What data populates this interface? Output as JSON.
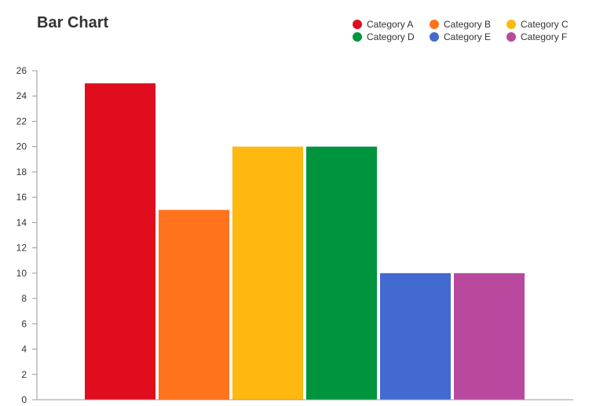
{
  "chart_data": {
    "type": "bar",
    "title": "Bar Chart",
    "xlabel": "",
    "ylabel": "",
    "categories": [
      "Category A",
      "Category B",
      "Category C",
      "Category D",
      "Category E",
      "Category F"
    ],
    "values": [
      25,
      15,
      20,
      20,
      10,
      10
    ],
    "colors": [
      "#e00d1f",
      "#ff731c",
      "#ffb80f",
      "#00943f",
      "#426ad1",
      "#b8499f"
    ],
    "ylim": [
      0,
      26
    ],
    "yticks": [
      0,
      2,
      4,
      6,
      8,
      10,
      12,
      14,
      16,
      18,
      20,
      22,
      24,
      26
    ],
    "grid": false,
    "legend_position": "top-right"
  }
}
